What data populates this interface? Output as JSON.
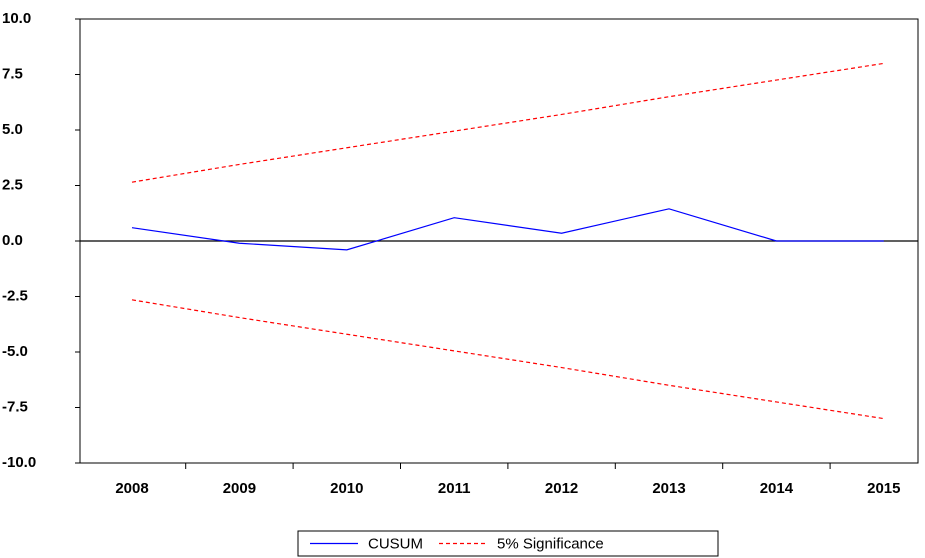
{
  "chart_data": {
    "type": "line",
    "categories": [
      "2008",
      "2009",
      "2010",
      "2011",
      "2012",
      "2013",
      "2014",
      "2015"
    ],
    "series": [
      {
        "name": "CUSUM",
        "color": "#0000ff",
        "dash": false,
        "values": [
          0.6,
          -0.1,
          -0.4,
          1.05,
          0.35,
          1.45,
          0.0,
          0.0
        ]
      },
      {
        "name": "5% Significance",
        "color": "#ff0000",
        "dash": true,
        "values": [
          2.65,
          3.45,
          4.2,
          4.95,
          5.7,
          6.5,
          7.25,
          8.0
        ]
      },
      {
        "name": "5% Significance",
        "color": "#ff0000",
        "dash": true,
        "values": [
          -2.65,
          -3.45,
          -4.2,
          -4.95,
          -5.7,
          -6.5,
          -7.25,
          -8.0
        ]
      }
    ],
    "ylim": [
      -10,
      10
    ],
    "yticks": [
      {
        "value": -10,
        "label": "-10.0"
      },
      {
        "value": -7.5,
        "label": "-7.5"
      },
      {
        "value": -5,
        "label": "-5.0"
      },
      {
        "value": -2.5,
        "label": "-2.5"
      },
      {
        "value": 0,
        "label": "0.0"
      },
      {
        "value": 2.5,
        "label": "2.5"
      },
      {
        "value": 5,
        "label": "5.0"
      },
      {
        "value": 7.5,
        "label": "7.5"
      },
      {
        "value": 10,
        "label": "10.0"
      }
    ],
    "grid": false,
    "legend": "bottom"
  }
}
